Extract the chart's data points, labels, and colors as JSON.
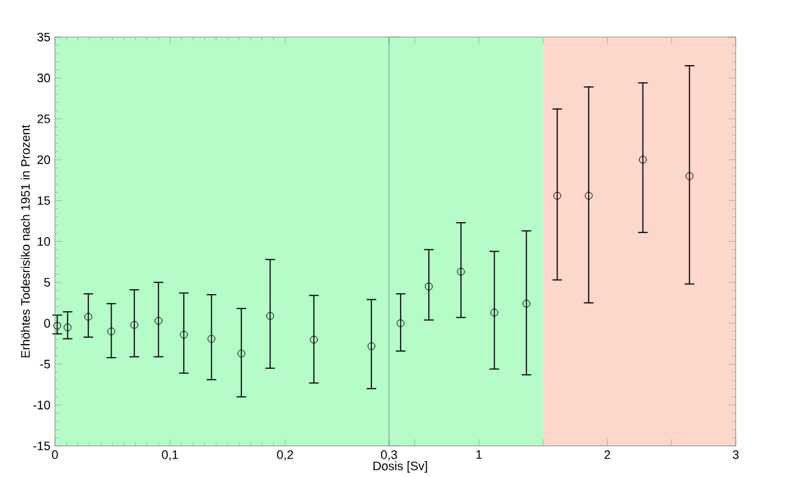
{
  "chart_data": [
    {
      "type": "scatter",
      "ylabel": "Erhöhtes Todesrisiko nach 1951 in Prozent",
      "xlabel": "Dosis [Sv]",
      "marker": "circle",
      "xlim": [
        0,
        0.3
      ],
      "ylim": [
        -15,
        35
      ],
      "xticks": [
        {
          "value": 0,
          "label": "0"
        },
        {
          "value": 0.1,
          "label": "0,1"
        },
        {
          "value": 0.2,
          "label": "0,2"
        }
      ],
      "yticks": [
        -15,
        -10,
        -5,
        0,
        5,
        10,
        15,
        20,
        25,
        30,
        35
      ],
      "bands": [
        {
          "axis": "x",
          "from": 0,
          "to": 0.3,
          "color": "#b5fcc9"
        }
      ],
      "series": [
        {
          "color": "#000000",
          "x": [
            0.002,
            0.011,
            0.029,
            0.049,
            0.069,
            0.09,
            0.112,
            0.136,
            0.162,
            0.187,
            0.225,
            0.275
          ],
          "values": [
            -0.3,
            -0.5,
            0.8,
            -1.0,
            -0.2,
            0.3,
            -1.4,
            -1.9,
            -3.7,
            0.9,
            -2.0,
            -2.8
          ],
          "errors": [
            [
              -1.3,
              1.0
            ],
            [
              -1.9,
              1.4
            ],
            [
              -1.7,
              3.6
            ],
            [
              -4.2,
              2.4
            ],
            [
              -4.1,
              4.1
            ],
            [
              -4.1,
              5.0
            ],
            [
              -6.1,
              3.7
            ],
            [
              -6.9,
              3.5
            ],
            [
              -9.0,
              1.8
            ],
            [
              -5.5,
              7.8
            ],
            [
              -7.3,
              3.4
            ],
            [
              -8.0,
              2.9
            ]
          ]
        }
      ]
    },
    {
      "type": "scatter",
      "marker": "circle",
      "tick_labels": "x",
      "xlim": [
        0.3,
        3
      ],
      "ylim": [
        -15,
        35
      ],
      "xticks": [
        {
          "value": 0.3,
          "label": "0,3"
        },
        {
          "value": 0.5,
          "label": null
        },
        1,
        {
          "value": 1.5,
          "label": null
        },
        2,
        {
          "value": 2.5,
          "label": null
        },
        3
      ],
      "yticks": [
        -15,
        -10,
        -5,
        0,
        5,
        10,
        15,
        20,
        25,
        30,
        35
      ],
      "bands": [
        {
          "axis": "x",
          "from": 0.3,
          "to": 1.5,
          "color": "#b5fcc9"
        },
        {
          "axis": "x",
          "from": 1.5,
          "to": 3,
          "color": "#fdd6cc"
        }
      ],
      "series": [
        {
          "color": "#000000",
          "x": [
            0.39,
            0.61,
            0.86,
            1.12,
            1.37,
            1.61,
            1.855,
            2.277,
            2.64
          ],
          "values": [
            0.0,
            4.5,
            6.3,
            1.3,
            2.4,
            15.6,
            15.6,
            20.0,
            18.0
          ],
          "errors": [
            [
              -3.4,
              3.6
            ],
            [
              0.4,
              9.0
            ],
            [
              0.7,
              12.3
            ],
            [
              -5.6,
              8.8
            ],
            [
              -6.3,
              11.3
            ],
            [
              5.3,
              26.2
            ],
            [
              2.5,
              28.9
            ],
            [
              11.1,
              29.4
            ],
            [
              4.8,
              31.5
            ]
          ]
        }
      ]
    }
  ]
}
